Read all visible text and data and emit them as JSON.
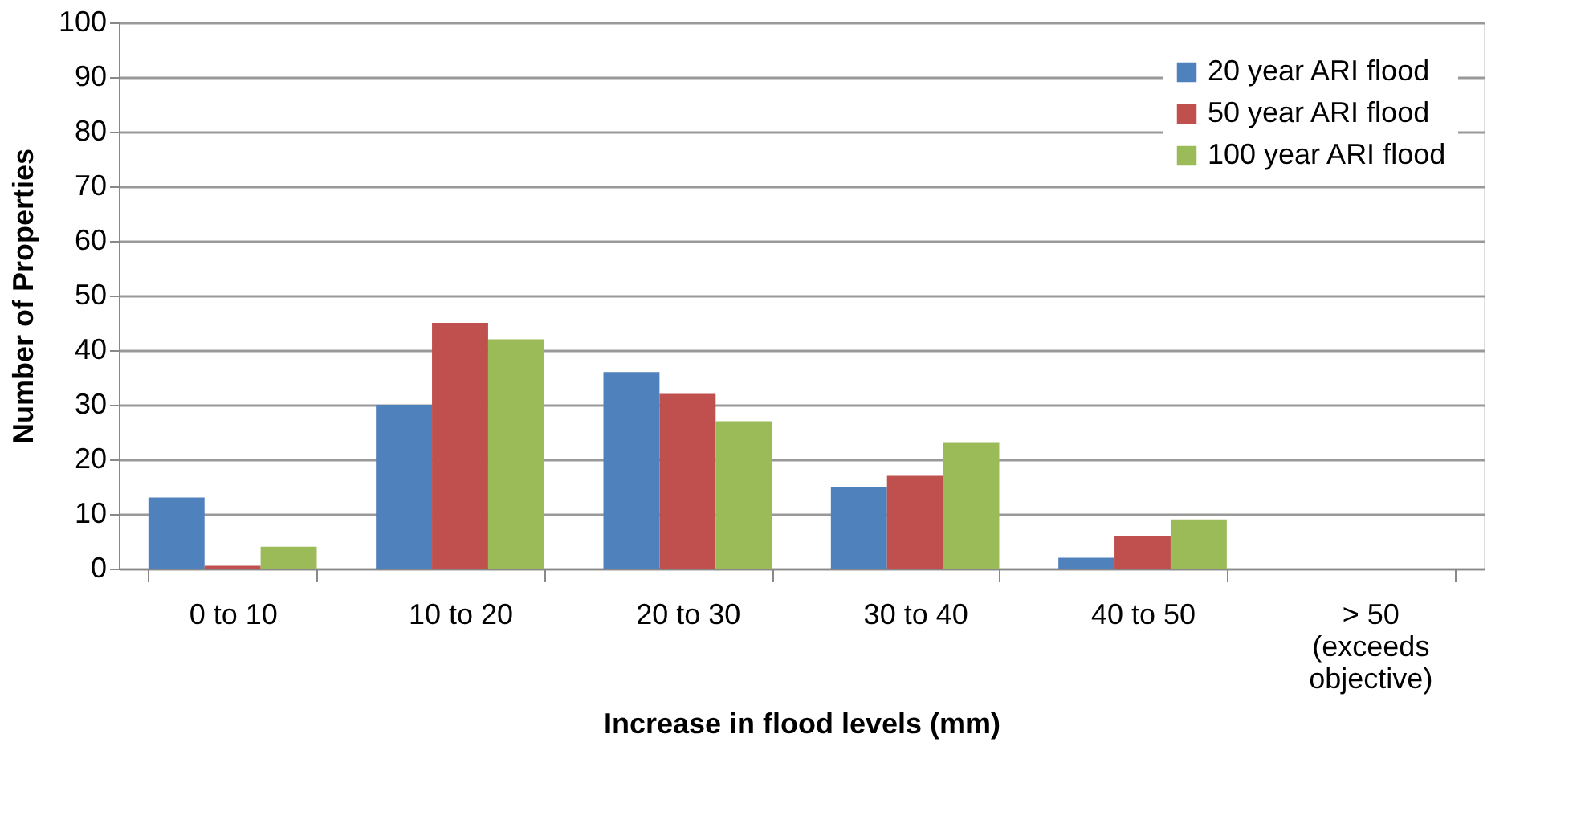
{
  "chart_data": {
    "type": "bar",
    "xlabel": "Increase in flood levels (mm)",
    "ylabel": "Number of Properties",
    "categories": [
      "0 to 10",
      "10 to 20",
      "20 to 30",
      "30 to 40",
      "40 to 50",
      "> 50 (exceeds objective)"
    ],
    "series": [
      {
        "name": "20 year ARI flood",
        "color": "#4f81bd",
        "values": [
          13,
          30,
          36,
          15,
          2,
          0
        ]
      },
      {
        "name": "50 year ARI flood",
        "color": "#c0504d",
        "values": [
          0.5,
          45,
          32,
          17,
          6,
          0
        ]
      },
      {
        "name": "100 year ARI flood",
        "color": "#9bbb59",
        "values": [
          4,
          42,
          27,
          23,
          9,
          0
        ]
      }
    ],
    "ylim": [
      0,
      100
    ],
    "yticks": [
      0,
      10,
      20,
      30,
      40,
      50,
      60,
      70,
      80,
      90,
      100
    ],
    "grid": "y",
    "legend": "top right"
  }
}
